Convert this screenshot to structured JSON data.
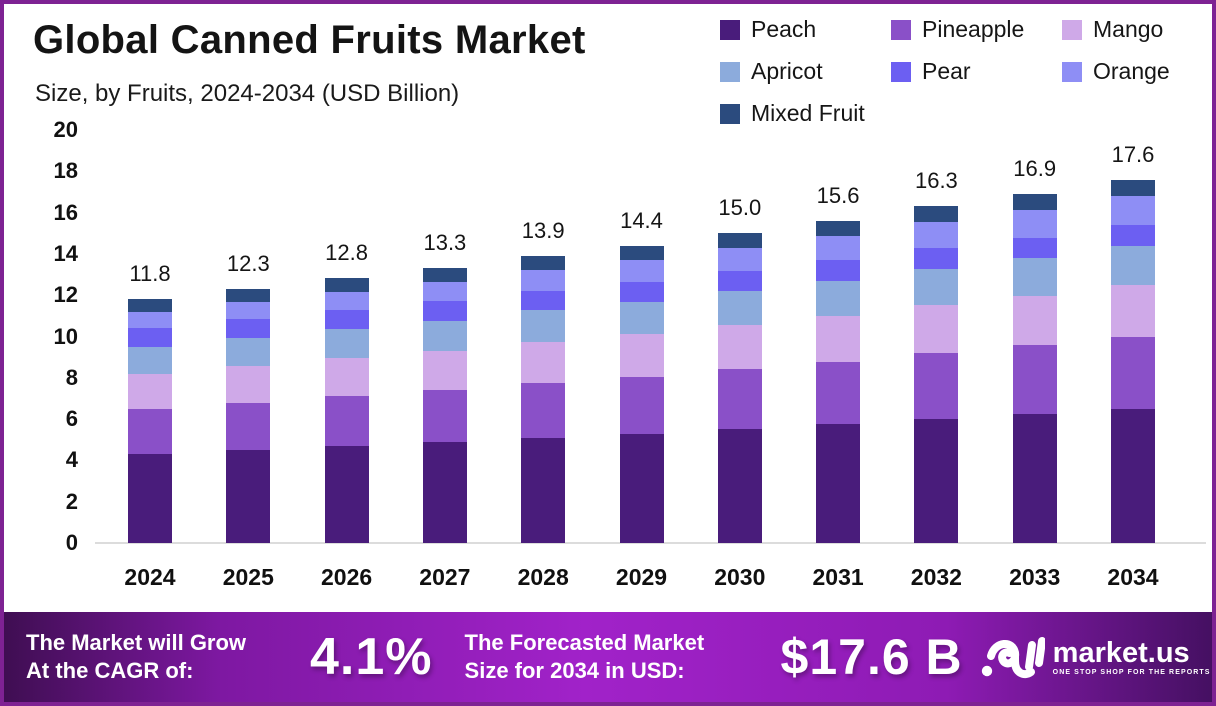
{
  "title": "Global Canned Fruits Market",
  "subtitle": "Size, by Fruits, 2024-2034 (USD Billion)",
  "chart_data": {
    "type": "bar",
    "stacked": true,
    "title": "Global Canned Fruits Market Size, by Fruits, 2024-2034 (USD Billion)",
    "categories": [
      "2024",
      "2025",
      "2026",
      "2027",
      "2028",
      "2029",
      "2030",
      "2031",
      "2032",
      "2033",
      "2034"
    ],
    "series": [
      {
        "name": "Peach",
        "color": "#491c7b",
        "values": [
          4.3,
          4.49,
          4.68,
          4.87,
          5.09,
          5.28,
          5.51,
          5.74,
          6.0,
          6.23,
          6.5
        ]
      },
      {
        "name": "Pineapple",
        "color": "#8a50c8",
        "values": [
          2.2,
          2.31,
          2.42,
          2.53,
          2.66,
          2.77,
          2.91,
          3.04,
          3.2,
          3.34,
          3.5
        ]
      },
      {
        "name": "Mango",
        "color": "#cfa9e8",
        "values": [
          1.7,
          1.77,
          1.84,
          1.91,
          1.99,
          2.06,
          2.14,
          2.23,
          2.32,
          2.4,
          2.5
        ]
      },
      {
        "name": "Apricot",
        "color": "#8cabdc",
        "values": [
          1.3,
          1.35,
          1.4,
          1.46,
          1.52,
          1.57,
          1.63,
          1.7,
          1.77,
          1.83,
          1.9
        ]
      },
      {
        "name": "Pear",
        "color": "#6c5ff2",
        "values": [
          0.9,
          0.91,
          0.93,
          0.94,
          0.95,
          0.96,
          0.97,
          0.98,
          0.99,
          0.99,
          1.0
        ]
      },
      {
        "name": "Orange",
        "color": "#8e8ef5",
        "values": [
          0.8,
          0.85,
          0.9,
          0.95,
          1.01,
          1.06,
          1.12,
          1.19,
          1.26,
          1.32,
          1.4
        ]
      },
      {
        "name": "Mixed Fruit",
        "color": "#2b4b7e",
        "values": [
          0.6,
          0.62,
          0.64,
          0.65,
          0.68,
          0.7,
          0.71,
          0.73,
          0.76,
          0.78,
          0.8
        ]
      }
    ],
    "totals_labels": [
      "11.8",
      "12.3",
      "12.8",
      "13.3",
      "13.9",
      "14.4",
      "15.0",
      "15.6",
      "16.3",
      "16.9",
      "17.6"
    ],
    "xlabel": "",
    "ylabel": "",
    "ylim": [
      0,
      20
    ],
    "y_ticks": [
      0,
      2,
      4,
      6,
      8,
      10,
      12,
      14,
      16,
      18,
      20
    ],
    "grid": false,
    "legend_position": "top-right"
  },
  "banner": {
    "cagr_label_line1": "The Market will Grow",
    "cagr_label_line2": "At the CAGR of:",
    "cagr_value": "4.1%",
    "forecast_label_line1": "The Forecasted Market",
    "forecast_label_line2": "Size for 2034 in USD:",
    "forecast_value": "$17.6 B",
    "logo_text": "market.us",
    "logo_tagline": "ONE STOP SHOP FOR THE REPORTS"
  },
  "colors": {
    "border": "#7e2293",
    "axis_line": "#dcdcdc",
    "text": "#141414",
    "banner_text": "#ffffff",
    "banner_gradient": [
      "#3f0e52",
      "#7e18a2",
      "#a122c9",
      "#8e1bb4",
      "#451062"
    ]
  }
}
